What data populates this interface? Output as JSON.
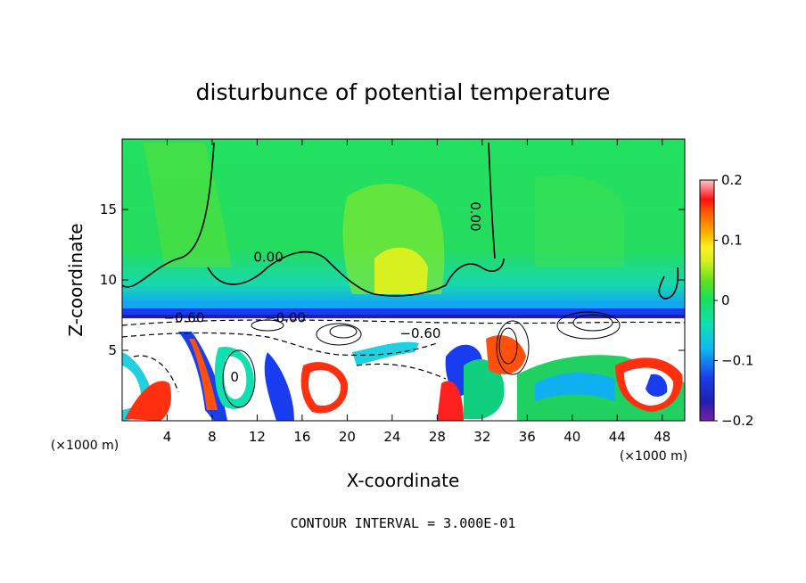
{
  "chart_data": {
    "type": "heatmap",
    "title": "disturbunce of potential temperature",
    "xlabel": "X-coordinate",
    "ylabel": "Z-coordinate",
    "x_unit": "(×1000 m)",
    "z_unit": "(×1000 m)",
    "xlim": [
      0,
      50
    ],
    "ylim": [
      0,
      20
    ],
    "x_ticks": [
      4,
      8,
      12,
      16,
      20,
      24,
      28,
      32,
      36,
      40,
      44,
      48
    ],
    "y_ticks": [
      5,
      10,
      15
    ],
    "colorbar": {
      "range": [
        -0.2,
        0.2
      ],
      "tick_values": [
        0.2,
        0.1,
        0,
        -0.1,
        -0.2
      ],
      "tick_labels": [
        "0.2",
        "0.1",
        "0",
        "−0.1",
        "−0.2"
      ]
    },
    "contour_labels": [
      {
        "text": "0.00",
        "x": 13,
        "z": 11.3
      },
      {
        "text": "0.00",
        "x": 31,
        "z": 14.5
      },
      {
        "text": "−0.60",
        "x": 5.5,
        "z": 7.0
      },
      {
        "text": "−0.00",
        "x": 14.5,
        "z": 7.0
      },
      {
        "text": "−0.60",
        "x": 26.5,
        "z": 5.9
      },
      {
        "text": "0",
        "x": 10,
        "z": 2.8
      }
    ],
    "contour_interval_text": "CONTOUR INTERVAL = 3.000E-01"
  }
}
